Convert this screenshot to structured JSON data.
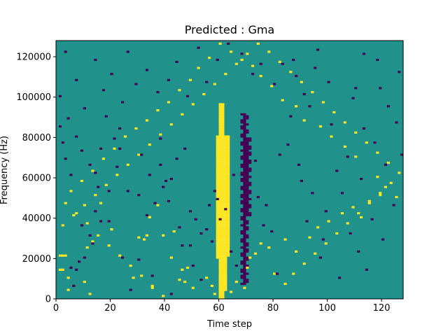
{
  "chart_data": {
    "type": "heatmap",
    "title": "Predicted : Gma",
    "xlabel": "Time step",
    "ylabel": "Frequency (Hz)",
    "xlim": [
      0,
      128
    ],
    "ylim": [
      0,
      128000
    ],
    "x_ticks": [
      0,
      20,
      40,
      60,
      80,
      100,
      120
    ],
    "y_ticks": [
      0,
      20000,
      40000,
      60000,
      80000,
      100000,
      120000
    ],
    "x_tick_labels": [
      "0",
      "20",
      "40",
      "60",
      "80",
      "100",
      "120"
    ],
    "y_tick_labels": [
      "0",
      "20000",
      "40000",
      "60000",
      "80000",
      "100000",
      "120000"
    ],
    "grid": false,
    "colormap": "viridis",
    "levels": {
      "low": "#440154",
      "mid": "#21918c",
      "high": "#fde725"
    },
    "background_level": "mid",
    "high_cells": [
      [
        1,
        21
      ],
      [
        2,
        21
      ],
      [
        3,
        21
      ],
      [
        1,
        14
      ],
      [
        2,
        14
      ],
      [
        4,
        10
      ],
      [
        10,
        8
      ],
      [
        12,
        2
      ],
      [
        4,
        4
      ],
      [
        11,
        25
      ],
      [
        13,
        28
      ],
      [
        16,
        47
      ],
      [
        20,
        34
      ],
      [
        28,
        10
      ],
      [
        30,
        30
      ],
      [
        33,
        31
      ],
      [
        32,
        29
      ],
      [
        34,
        40
      ],
      [
        35,
        5
      ],
      [
        37,
        46
      ],
      [
        39,
        31
      ],
      [
        43,
        33
      ],
      [
        42,
        20
      ],
      [
        45,
        9
      ],
      [
        46,
        14
      ],
      [
        48,
        15
      ],
      [
        47,
        8
      ],
      [
        50,
        5
      ],
      [
        55,
        10
      ],
      [
        58,
        2
      ],
      [
        60,
        3
      ],
      [
        57,
        6
      ],
      [
        64,
        3
      ],
      [
        66,
        8
      ],
      [
        69,
        5
      ],
      [
        70,
        15
      ],
      [
        71,
        20
      ],
      [
        73,
        22
      ],
      [
        75,
        27
      ],
      [
        78,
        25
      ],
      [
        80,
        12
      ],
      [
        84,
        29
      ],
      [
        88,
        23
      ],
      [
        93,
        30
      ],
      [
        96,
        35
      ],
      [
        100,
        38
      ],
      [
        105,
        42
      ],
      [
        109,
        45
      ],
      [
        112,
        40
      ],
      [
        115,
        48
      ],
      [
        119,
        51
      ],
      [
        121,
        55
      ],
      [
        125,
        50
      ],
      [
        118,
        60
      ],
      [
        110,
        70
      ],
      [
        106,
        75
      ],
      [
        101,
        80
      ],
      [
        97,
        85
      ],
      [
        91,
        88
      ],
      [
        88,
        95
      ],
      [
        83,
        98
      ],
      [
        79,
        105
      ],
      [
        75,
        110
      ],
      [
        72,
        115
      ],
      [
        68,
        118
      ],
      [
        64,
        122
      ],
      [
        60,
        126
      ],
      [
        56,
        119
      ],
      [
        52,
        114
      ],
      [
        49,
        108
      ],
      [
        45,
        103
      ],
      [
        41,
        97
      ],
      [
        37,
        93
      ],
      [
        33,
        88
      ],
      [
        29,
        84
      ],
      [
        25,
        80
      ],
      [
        21,
        74
      ],
      [
        17,
        69
      ],
      [
        13,
        63
      ],
      [
        9,
        58
      ],
      [
        5,
        53
      ],
      [
        3,
        47
      ],
      [
        7,
        42
      ],
      [
        11,
        37
      ],
      [
        15,
        31
      ],
      [
        19,
        26
      ],
      [
        23,
        21
      ],
      [
        27,
        16
      ],
      [
        31,
        11
      ],
      [
        35,
        6
      ],
      [
        39,
        1
      ],
      [
        84,
        7
      ],
      [
        87,
        12
      ],
      [
        91,
        17
      ],
      [
        95,
        22
      ],
      [
        99,
        27
      ],
      [
        103,
        32
      ],
      [
        107,
        37
      ],
      [
        111,
        42
      ],
      [
        115,
        47
      ],
      [
        119,
        52
      ],
      [
        123,
        57
      ],
      [
        126,
        62
      ],
      [
        122,
        67
      ],
      [
        118,
        72
      ],
      [
        114,
        77
      ],
      [
        110,
        82
      ],
      [
        106,
        87
      ],
      [
        102,
        92
      ],
      [
        98,
        97
      ],
      [
        94,
        102
      ],
      [
        90,
        107
      ],
      [
        86,
        112
      ],
      [
        82,
        117
      ],
      [
        78,
        122
      ],
      [
        74,
        126
      ],
      [
        70,
        121
      ],
      [
        66,
        116
      ],
      [
        62,
        111
      ],
      [
        58,
        106
      ],
      [
        54,
        101
      ],
      [
        50,
        96
      ],
      [
        46,
        91
      ],
      [
        42,
        86
      ],
      [
        38,
        81
      ],
      [
        34,
        76
      ],
      [
        30,
        71
      ],
      [
        26,
        66
      ],
      [
        22,
        61
      ],
      [
        18,
        56
      ],
      [
        14,
        51
      ],
      [
        10,
        46
      ],
      [
        6,
        41
      ],
      [
        2,
        36
      ]
    ],
    "low_cells": [
      [
        5,
        15
      ],
      [
        8,
        18
      ],
      [
        6,
        6
      ],
      [
        9,
        36
      ],
      [
        12,
        31
      ],
      [
        14,
        43
      ],
      [
        15,
        55
      ],
      [
        14,
        62
      ],
      [
        18,
        90
      ],
      [
        21,
        79
      ],
      [
        22,
        65
      ],
      [
        23,
        74
      ],
      [
        30,
        19
      ],
      [
        31,
        71
      ],
      [
        33,
        41
      ],
      [
        36,
        47
      ],
      [
        38,
        66
      ],
      [
        39,
        55
      ],
      [
        40,
        58
      ],
      [
        42,
        59
      ],
      [
        44,
        69
      ],
      [
        47,
        74
      ],
      [
        49,
        26
      ],
      [
        51,
        39
      ],
      [
        53,
        32
      ],
      [
        55,
        34
      ],
      [
        56,
        46
      ],
      [
        57,
        28
      ],
      [
        60,
        39
      ],
      [
        59,
        49
      ],
      [
        58,
        53
      ],
      [
        62,
        44
      ],
      [
        64,
        23
      ],
      [
        65,
        61
      ],
      [
        66,
        16
      ],
      [
        71,
        64
      ],
      [
        73,
        68
      ],
      [
        74,
        50
      ],
      [
        76,
        36
      ],
      [
        77,
        46
      ],
      [
        79,
        33
      ],
      [
        81,
        12
      ],
      [
        82,
        71
      ],
      [
        85,
        76
      ],
      [
        86,
        90
      ],
      [
        87,
        118
      ],
      [
        89,
        66
      ],
      [
        90,
        58
      ],
      [
        92,
        38
      ],
      [
        93,
        95
      ],
      [
        94,
        52
      ],
      [
        95,
        114
      ],
      [
        97,
        20
      ],
      [
        98,
        29
      ],
      [
        99,
        43
      ],
      [
        101,
        86
      ],
      [
        103,
        63
      ],
      [
        104,
        10
      ],
      [
        105,
        52
      ],
      [
        107,
        70
      ],
      [
        108,
        32
      ],
      [
        109,
        99
      ],
      [
        111,
        23
      ],
      [
        112,
        59
      ],
      [
        113,
        84
      ],
      [
        114,
        14
      ],
      [
        116,
        39
      ],
      [
        117,
        77
      ],
      [
        119,
        104
      ],
      [
        120,
        29
      ],
      [
        121,
        66
      ],
      [
        122,
        95
      ],
      [
        124,
        46
      ],
      [
        125,
        87
      ],
      [
        127,
        71
      ],
      [
        126,
        112
      ],
      [
        118,
        118
      ],
      [
        113,
        121
      ],
      [
        110,
        104
      ],
      [
        100,
        107
      ],
      [
        96,
        123
      ],
      [
        91,
        101
      ],
      [
        88,
        110
      ],
      [
        83,
        116
      ],
      [
        80,
        106
      ],
      [
        75,
        116
      ],
      [
        72,
        111
      ],
      [
        68,
        121
      ],
      [
        63,
        126
      ],
      [
        59,
        118
      ],
      [
        55,
        107
      ],
      [
        52,
        124
      ],
      [
        48,
        100
      ],
      [
        44,
        117
      ],
      [
        41,
        108
      ],
      [
        37,
        102
      ],
      [
        33,
        113
      ],
      [
        29,
        106
      ],
      [
        26,
        122
      ],
      [
        24,
        97
      ],
      [
        20,
        111
      ],
      [
        17,
        103
      ],
      [
        14,
        118
      ],
      [
        10,
        94
      ],
      [
        7,
        108
      ],
      [
        3,
        122
      ],
      [
        1,
        100
      ],
      [
        4,
        89
      ],
      [
        7,
        80
      ],
      [
        9,
        73
      ],
      [
        12,
        66
      ],
      [
        16,
        74
      ],
      [
        19,
        38
      ],
      [
        24,
        20
      ],
      [
        27,
        4
      ],
      [
        35,
        11
      ],
      [
        42,
        2
      ],
      [
        46,
        26
      ],
      [
        50,
        16
      ],
      [
        53,
        9
      ],
      [
        49,
        43
      ],
      [
        45,
        35
      ],
      [
        41,
        48
      ],
      [
        38,
        79
      ],
      [
        34,
        61
      ],
      [
        30,
        51
      ],
      [
        26,
        53
      ],
      [
        23,
        84
      ],
      [
        19,
        53
      ],
      [
        16,
        38
      ],
      [
        13,
        27
      ],
      [
        10,
        20
      ],
      [
        7,
        14
      ],
      [
        5,
        61
      ],
      [
        3,
        69
      ],
      [
        2,
        77
      ],
      [
        1,
        85
      ]
    ]
  }
}
